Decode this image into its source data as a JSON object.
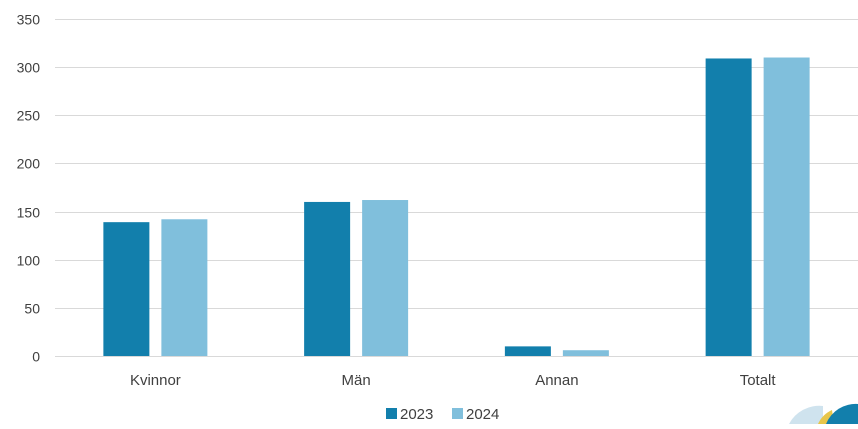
{
  "chart_data": {
    "type": "bar",
    "title": "",
    "xlabel": "",
    "ylabel": "",
    "categories": [
      "Kvinnor",
      "Män",
      "Annan",
      "Totalt"
    ],
    "series": [
      {
        "name": "2023",
        "color": "#127fac",
        "values": [
          139,
          160,
          10,
          309
        ]
      },
      {
        "name": "2024",
        "color": "#80bfdc",
        "values": [
          142,
          162,
          6,
          310
        ]
      }
    ],
    "ylim": [
      0,
      350
    ],
    "yticks": [
      0,
      50,
      100,
      150,
      200,
      250,
      300,
      350
    ],
    "grid": true,
    "legend_position": "bottom-center"
  }
}
